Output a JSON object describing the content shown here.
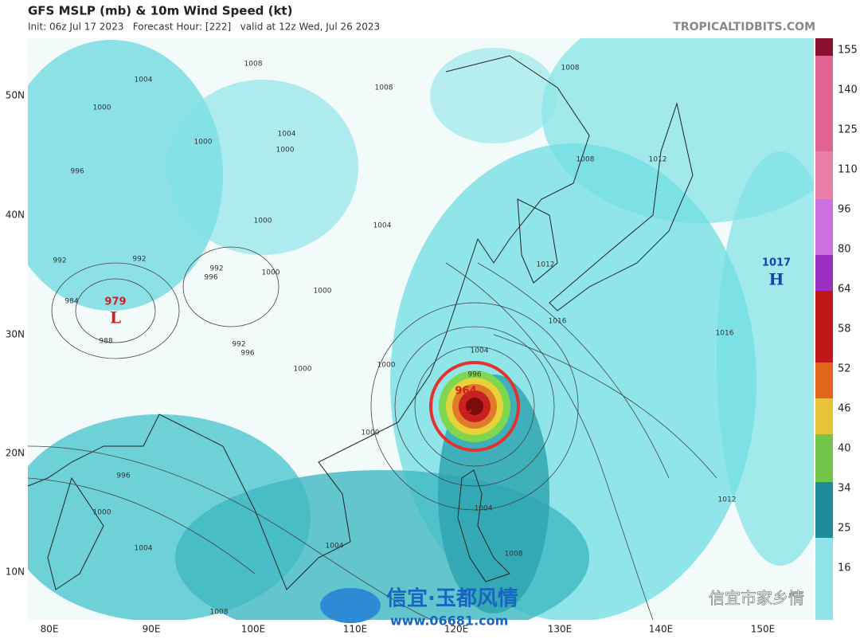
{
  "header": {
    "title": "GFS MSLP (mb) & 10m Wind Speed (kt)",
    "subtitle": "Init: 06z Jul 17 2023   Forecast Hour: [222]   valid at 12z Wed, Jul 26 2023",
    "source": "TROPICALTIDBITS.COM"
  },
  "map": {
    "lat_labels": [
      "50N",
      "40N",
      "30N",
      "20N",
      "10N"
    ],
    "lon_labels": [
      "80E",
      "90E",
      "100E",
      "110E",
      "120E",
      "130E",
      "140E",
      "150E"
    ],
    "systems": [
      {
        "pressure": "979",
        "symbol": "L"
      },
      {
        "pressure": "964",
        "symbol": "L"
      },
      {
        "pressure": "1017",
        "symbol": "H"
      }
    ],
    "contour_labels": [
      "1008",
      "1004",
      "1008",
      "1008",
      "1000",
      "1004",
      "1000",
      "1000",
      "996",
      "1008",
      "1012",
      "1004",
      "1000",
      "992",
      "992",
      "992",
      "996",
      "1000",
      "1000",
      "984",
      "988",
      "992",
      "996",
      "1000",
      "1000",
      "1004",
      "996",
      "1012",
      "1016",
      "1016",
      "1000",
      "996",
      "1000",
      "1004",
      "1004",
      "1004",
      "1008",
      "1012",
      "1008"
    ]
  },
  "colorbar": {
    "ticks": [
      "16",
      "25",
      "34",
      "40",
      "46",
      "52",
      "58",
      "64",
      "80",
      "96",
      "110",
      "125",
      "140",
      "155"
    ]
  },
  "watermark": {
    "brand": "信宜·玉都风情",
    "url": "www.06681.com",
    "account": "信宜市家乡情"
  }
}
